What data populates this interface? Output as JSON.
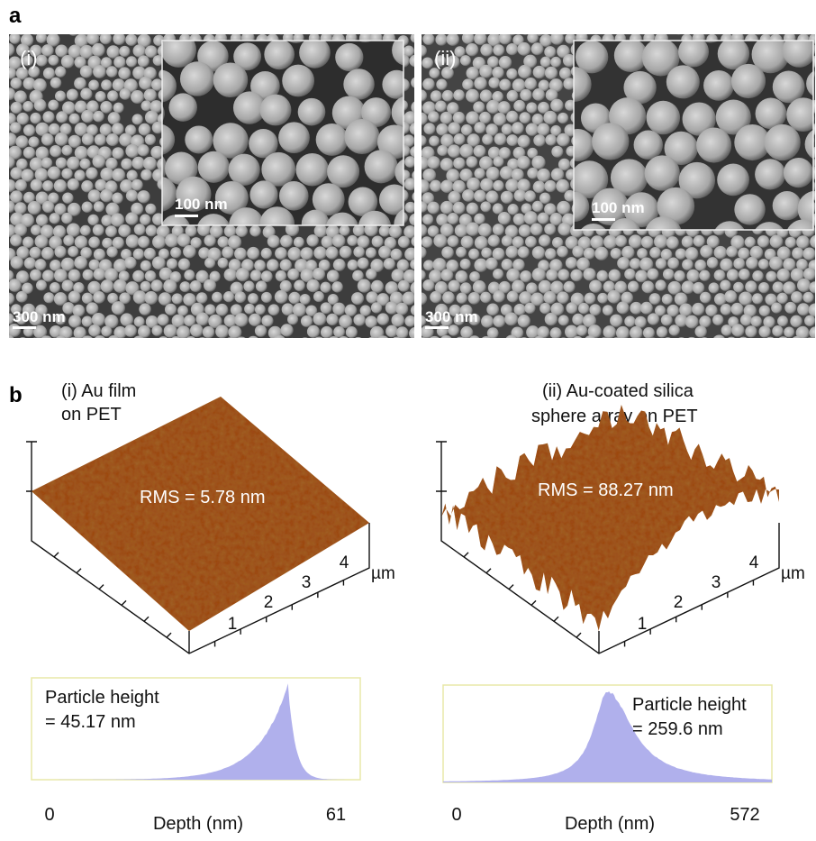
{
  "panel_a": {
    "label": "a",
    "images": [
      {
        "label": "(i)",
        "inset_scale": "100 nm",
        "scale": "300 nm"
      },
      {
        "label": "(ii)",
        "inset_scale": "100 nm",
        "scale": "300 nm"
      }
    ]
  },
  "panel_b": {
    "label": "b",
    "surfaces": [
      {
        "title_lines": [
          "(i) Au film",
          "on PET"
        ],
        "rms": "RMS = 5.78 nm",
        "axis_ticks": [
          1,
          2,
          3,
          4
        ],
        "unit": "µm",
        "histogram": {
          "text_lines": [
            "Particle height",
            "= 45.17 nm"
          ],
          "xlabel": "Depth (nm)",
          "xmin": 0,
          "xmax": 61
        }
      },
      {
        "title_lines": [
          "(ii) Au-coated silica",
          "sphere array on PET"
        ],
        "rms": "RMS = 88.27 nm",
        "axis_ticks": [
          1,
          2,
          3,
          4
        ],
        "unit": "µm",
        "histogram": {
          "text_lines": [
            "Particle height",
            "= 259.6 nm"
          ],
          "xlabel": "Depth (nm)",
          "xmin": 0,
          "xmax": 572
        }
      }
    ]
  }
}
